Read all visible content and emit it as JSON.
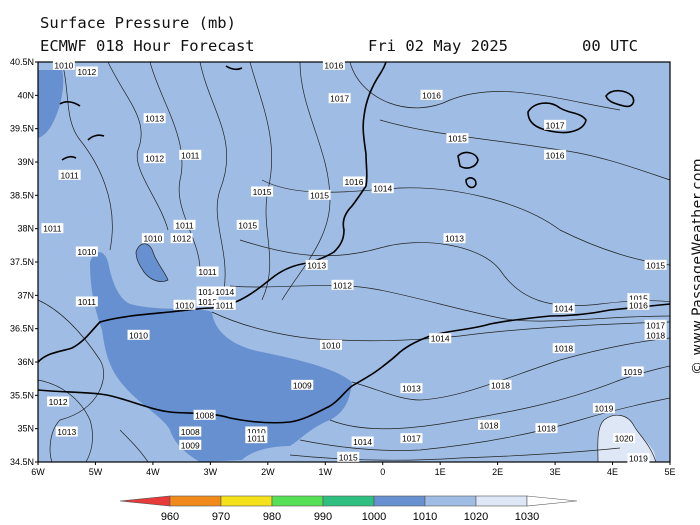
{
  "header": {
    "title": "Surface Pressure (mb)",
    "model_line": "ECMWF 018 Hour Forecast",
    "date": "Fri 02 May 2025",
    "time": "00 UTC"
  },
  "axes": {
    "lat_labels": [
      "40.5N",
      "40N",
      "39.5N",
      "39N",
      "38.5N",
      "38N",
      "37.5N",
      "37N",
      "36.5N",
      "36N",
      "35.5N",
      "35N",
      "34.5N"
    ],
    "lon_labels": [
      "6W",
      "5W",
      "4W",
      "3W",
      "2W",
      "1W",
      "0",
      "1E",
      "2E",
      "3E",
      "4E",
      "5E"
    ]
  },
  "isobar_labels": [
    {
      "text": "1010",
      "lon": -5.55,
      "lat": 40.45
    },
    {
      "text": "1012",
      "lon": -5.15,
      "lat": 40.35
    },
    {
      "text": "1016",
      "lon": -0.85,
      "lat": 40.45
    },
    {
      "text": "1017",
      "lon": -0.75,
      "lat": 39.95
    },
    {
      "text": "1016",
      "lon": 0.85,
      "lat": 40.0
    },
    {
      "text": "1017",
      "lon": 3.0,
      "lat": 39.55
    },
    {
      "text": "1013",
      "lon": -3.97,
      "lat": 39.65
    },
    {
      "text": "1015",
      "lon": 1.3,
      "lat": 39.35
    },
    {
      "text": "1016",
      "lon": 3.0,
      "lat": 39.1
    },
    {
      "text": "1012",
      "lon": -3.97,
      "lat": 39.05
    },
    {
      "text": "1011",
      "lon": -3.35,
      "lat": 39.1
    },
    {
      "text": "1011",
      "lon": -5.45,
      "lat": 38.8
    },
    {
      "text": "1016",
      "lon": -0.5,
      "lat": 38.7
    },
    {
      "text": "1014",
      "lon": 0.0,
      "lat": 38.6
    },
    {
      "text": "1015",
      "lon": -2.1,
      "lat": 38.55
    },
    {
      "text": "1015",
      "lon": -1.1,
      "lat": 38.5
    },
    {
      "text": "1011",
      "lon": -5.75,
      "lat": 38.0
    },
    {
      "text": "1011",
      "lon": -3.45,
      "lat": 38.05
    },
    {
      "text": "1015",
      "lon": -2.35,
      "lat": 38.05
    },
    {
      "text": "1013",
      "lon": 1.25,
      "lat": 37.85
    },
    {
      "text": "1010",
      "lon": -4.0,
      "lat": 37.85
    },
    {
      "text": "1012",
      "lon": -3.5,
      "lat": 37.85
    },
    {
      "text": "1010",
      "lon": -5.15,
      "lat": 37.65
    },
    {
      "text": "1011",
      "lon": -3.05,
      "lat": 37.35
    },
    {
      "text": "1013",
      "lon": -1.15,
      "lat": 37.45
    },
    {
      "text": "1015",
      "lon": 4.75,
      "lat": 37.45
    },
    {
      "text": "1014",
      "lon": -3.05,
      "lat": 37.05
    },
    {
      "text": "1014",
      "lon": -2.75,
      "lat": 37.05
    },
    {
      "text": "1012",
      "lon": -0.7,
      "lat": 37.15
    },
    {
      "text": "1012",
      "lon": -3.05,
      "lat": 36.9
    },
    {
      "text": "1011",
      "lon": -5.15,
      "lat": 36.9
    },
    {
      "text": "1010",
      "lon": -3.45,
      "lat": 36.85
    },
    {
      "text": "1011",
      "lon": -2.75,
      "lat": 36.85
    },
    {
      "text": "1014",
      "lon": 3.15,
      "lat": 36.8
    },
    {
      "text": "1015",
      "lon": 4.45,
      "lat": 36.95
    },
    {
      "text": "1016",
      "lon": 4.45,
      "lat": 36.85
    },
    {
      "text": "1017",
      "lon": 4.75,
      "lat": 36.55
    },
    {
      "text": "1018",
      "lon": 4.75,
      "lat": 36.4
    },
    {
      "text": "1010",
      "lon": -4.25,
      "lat": 36.4
    },
    {
      "text": "1014",
      "lon": 1.0,
      "lat": 36.35
    },
    {
      "text": "1010",
      "lon": -0.9,
      "lat": 36.25
    },
    {
      "text": "1018",
      "lon": 3.15,
      "lat": 36.2
    },
    {
      "text": "1019",
      "lon": 4.35,
      "lat": 35.85
    },
    {
      "text": "1018",
      "lon": 2.05,
      "lat": 35.65
    },
    {
      "text": "1009",
      "lon": -1.4,
      "lat": 35.65
    },
    {
      "text": "1013",
      "lon": 0.5,
      "lat": 35.6
    },
    {
      "text": "1012",
      "lon": -5.65,
      "lat": 35.4
    },
    {
      "text": "1019",
      "lon": 3.85,
      "lat": 35.3
    },
    {
      "text": "1008",
      "lon": -3.1,
      "lat": 35.2
    },
    {
      "text": "1018",
      "lon": 1.85,
      "lat": 35.05
    },
    {
      "text": "1018",
      "lon": 2.85,
      "lat": 35.0
    },
    {
      "text": "1013",
      "lon": -5.5,
      "lat": 34.95
    },
    {
      "text": "1008",
      "lon": -3.35,
      "lat": 34.95
    },
    {
      "text": "1010",
      "lon": -2.2,
      "lat": 34.95
    },
    {
      "text": "1011",
      "lon": -2.2,
      "lat": 34.85
    },
    {
      "text": "1009",
      "lon": -3.35,
      "lat": 34.75
    },
    {
      "text": "1014",
      "lon": -0.35,
      "lat": 34.8
    },
    {
      "text": "1017",
      "lon": 0.5,
      "lat": 34.85
    },
    {
      "text": "1020",
      "lon": 4.2,
      "lat": 34.85
    },
    {
      "text": "1015",
      "lon": -0.6,
      "lat": 34.57
    },
    {
      "text": "1019",
      "lon": 4.45,
      "lat": 34.55
    }
  ],
  "legend": {
    "values": [
      "960",
      "970",
      "980",
      "990",
      "1000",
      "1010",
      "1020",
      "1030"
    ],
    "colors": [
      "#e83a3a",
      "#f08a1a",
      "#f5e11a",
      "#55e055",
      "#2fbf80",
      "#6690cf",
      "#9fbde4",
      "#dde7f6",
      "#ffffff"
    ]
  },
  "fill_colors": {
    "low": "#6690cf",
    "mid": "#9fbde4",
    "high": "#dde7f6"
  },
  "credit": "© www.PassageWeather.com"
}
